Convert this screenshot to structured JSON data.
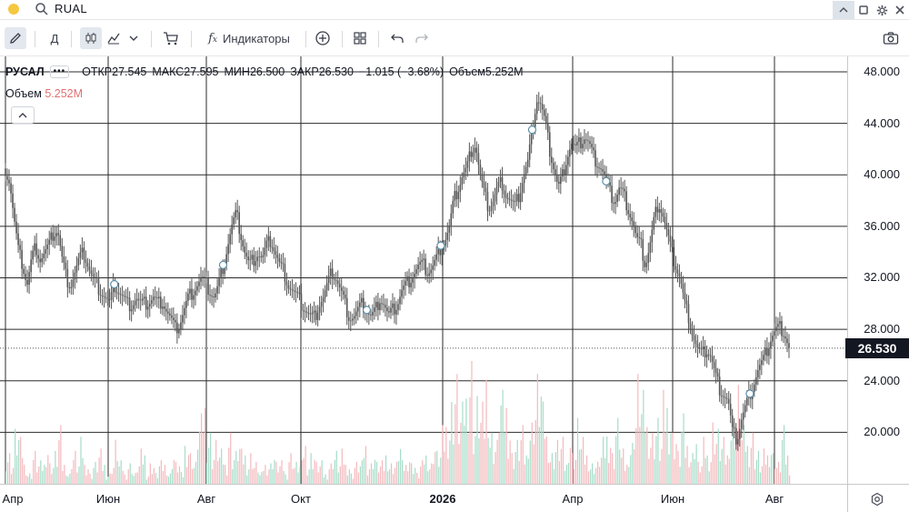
{
  "search": {
    "query": "RUAL"
  },
  "toolbar": {
    "interval_label": "Д",
    "indicators_label": "Индикаторы"
  },
  "legend": {
    "symbol": "РУСАЛ",
    "more": "•••",
    "open": "ОТКР27.545",
    "high": "МАКС27.595",
    "low": "МИН26.500",
    "close": "ЗАКР26.530",
    "change": "−1.015 (−3.68%)",
    "volume": "Объем5.252M"
  },
  "volume_legend": {
    "label": "Объем",
    "value": "5.252M"
  },
  "colors": {
    "up_volume": "#a6dcc8",
    "down_volume": "#f3b9bd",
    "candle": "#555555",
    "last_price_bg": "#131722",
    "status_dot": "#f5c842"
  },
  "price_axis": {
    "ticks": [
      "48.000",
      "44.000",
      "40.000",
      "36.000",
      "32.000",
      "28.000",
      "24.000",
      "20.000"
    ],
    "last_price": "26.530"
  },
  "time_axis": {
    "ticks": [
      "Апр",
      "Июн",
      "Авг",
      "Окт",
      "2026",
      "Апр",
      "Июн",
      "Авг"
    ],
    "bold_tick": "2026"
  },
  "chart_data": {
    "type": "line",
    "ylim": [
      16.0,
      49.2
    ],
    "series": [
      {
        "values": [
          40.5,
          39.5,
          36.5,
          34.0,
          33.0,
          31.5,
          33.5,
          34.5,
          33.5,
          34.0,
          34.5,
          35.5,
          35.8,
          33.5,
          32.0,
          31.5,
          32.5,
          33.5,
          34.0,
          33.0,
          32.0,
          31.5,
          31.0,
          30.5,
          30.0,
          31.5,
          31.0,
          30.5,
          30.0,
          30.0,
          30.5,
          30.0,
          30.0,
          30.2,
          30.5,
          30.0,
          30.3,
          29.5,
          28.8,
          28.0,
          28.5,
          29.5,
          30.5,
          31.0,
          31.5,
          32.0,
          31.5,
          31.0,
          30.5,
          31.5,
          33.0,
          34.5,
          36.0,
          37.0,
          35.5,
          34.0,
          33.0,
          33.5,
          34.0,
          33.5,
          34.5,
          35.0,
          34.0,
          33.0,
          32.5,
          31.5,
          31.0,
          30.5,
          30.0,
          29.5,
          29.0,
          29.0,
          30.0,
          30.5,
          31.5,
          32.5,
          32.0,
          31.0,
          30.0,
          29.0,
          29.0,
          29.5,
          30.0,
          29.5,
          29.0,
          29.5,
          30.5,
          30.0,
          29.0,
          29.5,
          30.0,
          31.0,
          31.5,
          32.0,
          32.5,
          33.0,
          33.0,
          32.5,
          32.8,
          33.5,
          34.5,
          35.0,
          36.0,
          38.0,
          39.0,
          40.0,
          40.5,
          42.0,
          42.5,
          40.0,
          38.5,
          37.5,
          38.0,
          39.0,
          39.5,
          38.5,
          38.0,
          37.5,
          38.5,
          40.0,
          41.0,
          43.5,
          46.0,
          45.5,
          44.0,
          42.0,
          40.5,
          39.0,
          40.0,
          41.5,
          42.5,
          42.0,
          42.5,
          43.0,
          42.5,
          41.5,
          41.0,
          40.5,
          39.5,
          38.5,
          38.0,
          39.0,
          38.5,
          37.5,
          36.5,
          35.0,
          34.5,
          33.0,
          34.5,
          36.5,
          38.0,
          37.0,
          35.5,
          34.0,
          33.0,
          32.0,
          30.0,
          29.0,
          27.5,
          26.5,
          26.0,
          26.5,
          26.0,
          24.5,
          23.5,
          23.0,
          22.5,
          20.0,
          19.5,
          21.0,
          22.0,
          23.0,
          24.0,
          25.0,
          25.5,
          26.5,
          27.5,
          28.0,
          28.2,
          27.8,
          26.6
        ]
      },
      {
        "values": [
          3,
          2,
          5,
          4,
          2,
          1,
          3,
          2,
          2,
          4,
          2,
          3,
          5,
          2,
          1,
          3,
          2,
          4,
          2,
          1,
          2,
          3,
          2,
          1,
          2,
          4,
          2,
          1,
          2,
          1,
          2,
          3,
          1,
          2,
          1,
          2,
          2,
          1,
          3,
          2,
          1,
          4,
          3,
          2,
          6,
          8,
          5,
          3,
          4,
          3,
          2,
          5,
          3,
          4,
          3,
          2,
          3,
          2,
          1,
          2,
          2,
          3,
          2,
          2,
          1,
          3,
          2,
          2,
          4,
          2,
          3,
          2,
          2,
          1,
          2,
          3,
          2,
          3,
          2,
          1,
          2,
          2,
          4,
          2,
          3,
          2,
          2,
          3,
          2,
          2,
          4,
          2,
          3,
          2,
          1,
          2,
          3,
          2,
          4,
          3,
          5,
          6,
          8,
          10,
          7,
          9,
          12,
          6,
          8,
          7,
          11,
          5,
          4,
          9,
          8,
          6,
          3,
          4,
          5,
          3,
          6,
          8,
          10,
          7,
          5,
          3,
          4,
          4,
          2,
          5,
          3,
          6,
          4,
          3,
          2,
          2,
          3,
          4,
          5,
          3,
          6,
          3,
          2,
          4,
          7,
          10,
          8,
          6,
          5,
          6,
          4,
          8,
          7,
          5,
          3,
          6,
          4,
          3,
          5,
          2,
          4,
          3,
          6,
          5,
          4,
          3,
          6,
          7,
          9,
          5,
          4,
          5,
          3,
          2,
          3,
          4,
          3,
          2,
          5,
          3,
          2
        ]
      }
    ]
  }
}
